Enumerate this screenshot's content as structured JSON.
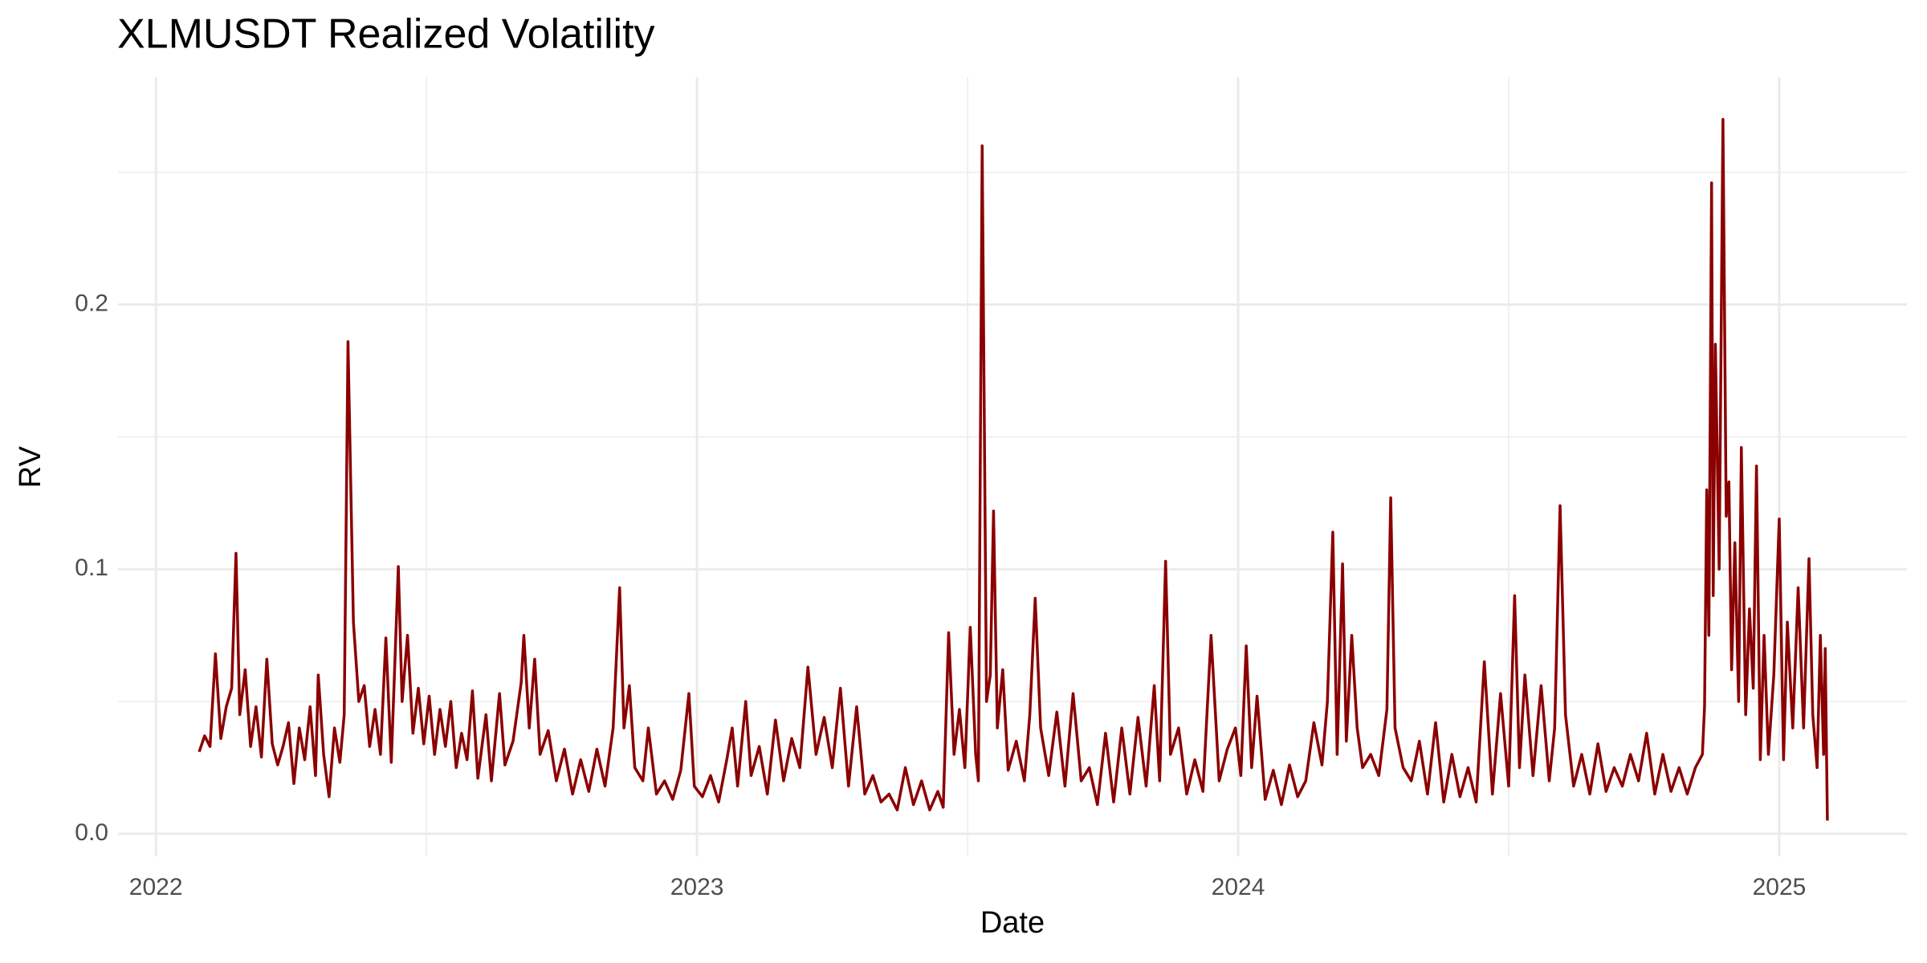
{
  "chart_data": {
    "type": "line",
    "title": "XLMUSDT Realized Volatility",
    "x_label": "Date",
    "y_label": "RV",
    "x": [
      2022.08,
      2022.09,
      2022.1,
      2022.11,
      2022.12,
      2022.13,
      2022.14,
      2022.148,
      2022.155,
      2022.165,
      2022.175,
      2022.185,
      2022.195,
      2022.205,
      2022.215,
      2022.225,
      2022.235,
      2022.245,
      2022.255,
      2022.265,
      2022.275,
      2022.285,
      2022.295,
      2022.3,
      2022.31,
      2022.32,
      2022.33,
      2022.34,
      2022.348,
      2022.355,
      2022.365,
      2022.375,
      2022.385,
      2022.395,
      2022.405,
      2022.415,
      2022.425,
      2022.435,
      2022.448,
      2022.455,
      2022.465,
      2022.475,
      2022.485,
      2022.495,
      2022.505,
      2022.515,
      2022.525,
      2022.535,
      2022.545,
      2022.555,
      2022.565,
      2022.575,
      2022.585,
      2022.595,
      2022.61,
      2022.62,
      2022.635,
      2022.645,
      2022.66,
      2022.675,
      2022.68,
      2022.69,
      2022.7,
      2022.71,
      2022.725,
      2022.74,
      2022.755,
      2022.77,
      2022.785,
      2022.8,
      2022.815,
      2022.83,
      2022.845,
      2022.857,
      2022.865,
      2022.875,
      2022.885,
      2022.9,
      2022.91,
      2022.925,
      2022.94,
      2022.955,
      2022.97,
      2022.985,
      2022.995,
      2023.01,
      2023.025,
      2023.04,
      2023.055,
      2023.065,
      2023.075,
      2023.09,
      2023.1,
      2023.115,
      2023.13,
      2023.145,
      2023.16,
      2023.175,
      2023.19,
      2023.205,
      2023.22,
      2023.235,
      2023.25,
      2023.265,
      2023.28,
      2023.295,
      2023.31,
      2023.325,
      2023.34,
      2023.355,
      2023.37,
      2023.385,
      2023.4,
      2023.415,
      2023.43,
      2023.445,
      2023.455,
      2023.465,
      2023.475,
      2023.485,
      2023.495,
      2023.505,
      2023.515,
      2023.52,
      2023.527,
      2023.535,
      2023.542,
      2023.548,
      2023.555,
      2023.565,
      2023.575,
      2023.59,
      2023.605,
      2023.615,
      2023.625,
      2023.635,
      2023.65,
      2023.665,
      2023.68,
      2023.695,
      2023.71,
      2023.725,
      2023.74,
      2023.755,
      2023.77,
      2023.785,
      2023.8,
      2023.815,
      2023.83,
      2023.845,
      2023.855,
      2023.866,
      2023.875,
      2023.89,
      2023.905,
      2023.92,
      2023.935,
      2023.95,
      2023.965,
      2023.98,
      2023.995,
      2024.005,
      2024.015,
      2024.025,
      2024.035,
      2024.05,
      2024.065,
      2024.08,
      2024.095,
      2024.11,
      2024.125,
      2024.14,
      2024.155,
      2024.165,
      2024.175,
      2024.183,
      2024.193,
      2024.2,
      2024.21,
      2024.22,
      2024.23,
      2024.245,
      2024.26,
      2024.275,
      2024.282,
      2024.29,
      2024.305,
      2024.32,
      2024.335,
      2024.35,
      2024.365,
      2024.38,
      2024.395,
      2024.41,
      2024.425,
      2024.44,
      2024.455,
      2024.47,
      2024.485,
      2024.5,
      2024.511,
      2024.52,
      2024.53,
      2024.545,
      2024.56,
      2024.575,
      2024.585,
      2024.595,
      2024.605,
      2024.62,
      2024.635,
      2024.65,
      2024.665,
      2024.68,
      2024.695,
      2024.71,
      2024.725,
      2024.74,
      2024.755,
      2024.77,
      2024.785,
      2024.8,
      2024.815,
      2024.83,
      2024.845,
      2024.858,
      2024.862,
      2024.866,
      2024.87,
      2024.875,
      2024.878,
      2024.882,
      2024.889,
      2024.896,
      2024.902,
      2024.907,
      2024.912,
      2024.918,
      2024.925,
      2024.93,
      2024.938,
      2024.945,
      2024.952,
      2024.958,
      2024.965,
      2024.972,
      2024.98,
      2024.99,
      2025.0,
      2025.008,
      2025.015,
      2025.025,
      2025.035,
      2025.045,
      2025.055,
      2025.062,
      2025.07,
      2025.076,
      2025.082,
      2025.085,
      2025.089
    ],
    "values": [
      0.031,
      0.037,
      0.033,
      0.068,
      0.036,
      0.048,
      0.055,
      0.106,
      0.045,
      0.062,
      0.033,
      0.048,
      0.029,
      0.066,
      0.034,
      0.026,
      0.033,
      0.042,
      0.019,
      0.04,
      0.028,
      0.048,
      0.022,
      0.06,
      0.03,
      0.014,
      0.04,
      0.027,
      0.045,
      0.186,
      0.08,
      0.05,
      0.056,
      0.033,
      0.047,
      0.03,
      0.074,
      0.027,
      0.101,
      0.05,
      0.075,
      0.038,
      0.055,
      0.034,
      0.052,
      0.03,
      0.047,
      0.033,
      0.05,
      0.025,
      0.038,
      0.028,
      0.054,
      0.021,
      0.045,
      0.02,
      0.053,
      0.026,
      0.035,
      0.057,
      0.075,
      0.04,
      0.066,
      0.03,
      0.039,
      0.02,
      0.032,
      0.015,
      0.028,
      0.016,
      0.032,
      0.018,
      0.04,
      0.093,
      0.04,
      0.056,
      0.025,
      0.02,
      0.04,
      0.015,
      0.02,
      0.013,
      0.024,
      0.053,
      0.018,
      0.014,
      0.022,
      0.012,
      0.028,
      0.04,
      0.018,
      0.05,
      0.022,
      0.033,
      0.015,
      0.043,
      0.02,
      0.036,
      0.025,
      0.063,
      0.03,
      0.044,
      0.025,
      0.055,
      0.018,
      0.048,
      0.015,
      0.022,
      0.012,
      0.015,
      0.009,
      0.025,
      0.011,
      0.02,
      0.009,
      0.016,
      0.01,
      0.076,
      0.03,
      0.047,
      0.025,
      0.078,
      0.03,
      0.02,
      0.26,
      0.05,
      0.06,
      0.122,
      0.04,
      0.062,
      0.024,
      0.035,
      0.02,
      0.045,
      0.089,
      0.04,
      0.022,
      0.046,
      0.018,
      0.053,
      0.02,
      0.025,
      0.011,
      0.038,
      0.012,
      0.04,
      0.015,
      0.044,
      0.018,
      0.056,
      0.02,
      0.103,
      0.03,
      0.04,
      0.015,
      0.028,
      0.016,
      0.075,
      0.02,
      0.032,
      0.04,
      0.022,
      0.071,
      0.025,
      0.052,
      0.013,
      0.024,
      0.011,
      0.026,
      0.014,
      0.02,
      0.042,
      0.026,
      0.05,
      0.114,
      0.03,
      0.102,
      0.035,
      0.075,
      0.04,
      0.025,
      0.03,
      0.022,
      0.047,
      0.127,
      0.04,
      0.025,
      0.02,
      0.035,
      0.015,
      0.042,
      0.012,
      0.03,
      0.014,
      0.025,
      0.012,
      0.065,
      0.015,
      0.053,
      0.018,
      0.09,
      0.025,
      0.06,
      0.022,
      0.056,
      0.02,
      0.04,
      0.124,
      0.045,
      0.018,
      0.03,
      0.015,
      0.034,
      0.016,
      0.025,
      0.018,
      0.03,
      0.02,
      0.038,
      0.015,
      0.03,
      0.016,
      0.025,
      0.015,
      0.025,
      0.03,
      0.048,
      0.13,
      0.075,
      0.246,
      0.09,
      0.185,
      0.1,
      0.27,
      0.12,
      0.133,
      0.062,
      0.11,
      0.05,
      0.146,
      0.045,
      0.085,
      0.055,
      0.139,
      0.028,
      0.075,
      0.03,
      0.06,
      0.119,
      0.028,
      0.08,
      0.04,
      0.093,
      0.04,
      0.104,
      0.045,
      0.025,
      0.075,
      0.03,
      0.07,
      0.005
    ],
    "color": "#8b0000",
    "xlim": [
      2021.93,
      2025.236
    ],
    "ylim": [
      -0.0085,
      0.286
    ],
    "xticks": [
      2022,
      2023,
      2024,
      2025
    ],
    "yticks": [
      {
        "value": 0,
        "label": "0.0"
      },
      0.1,
      0.2
    ],
    "grid": true
  }
}
